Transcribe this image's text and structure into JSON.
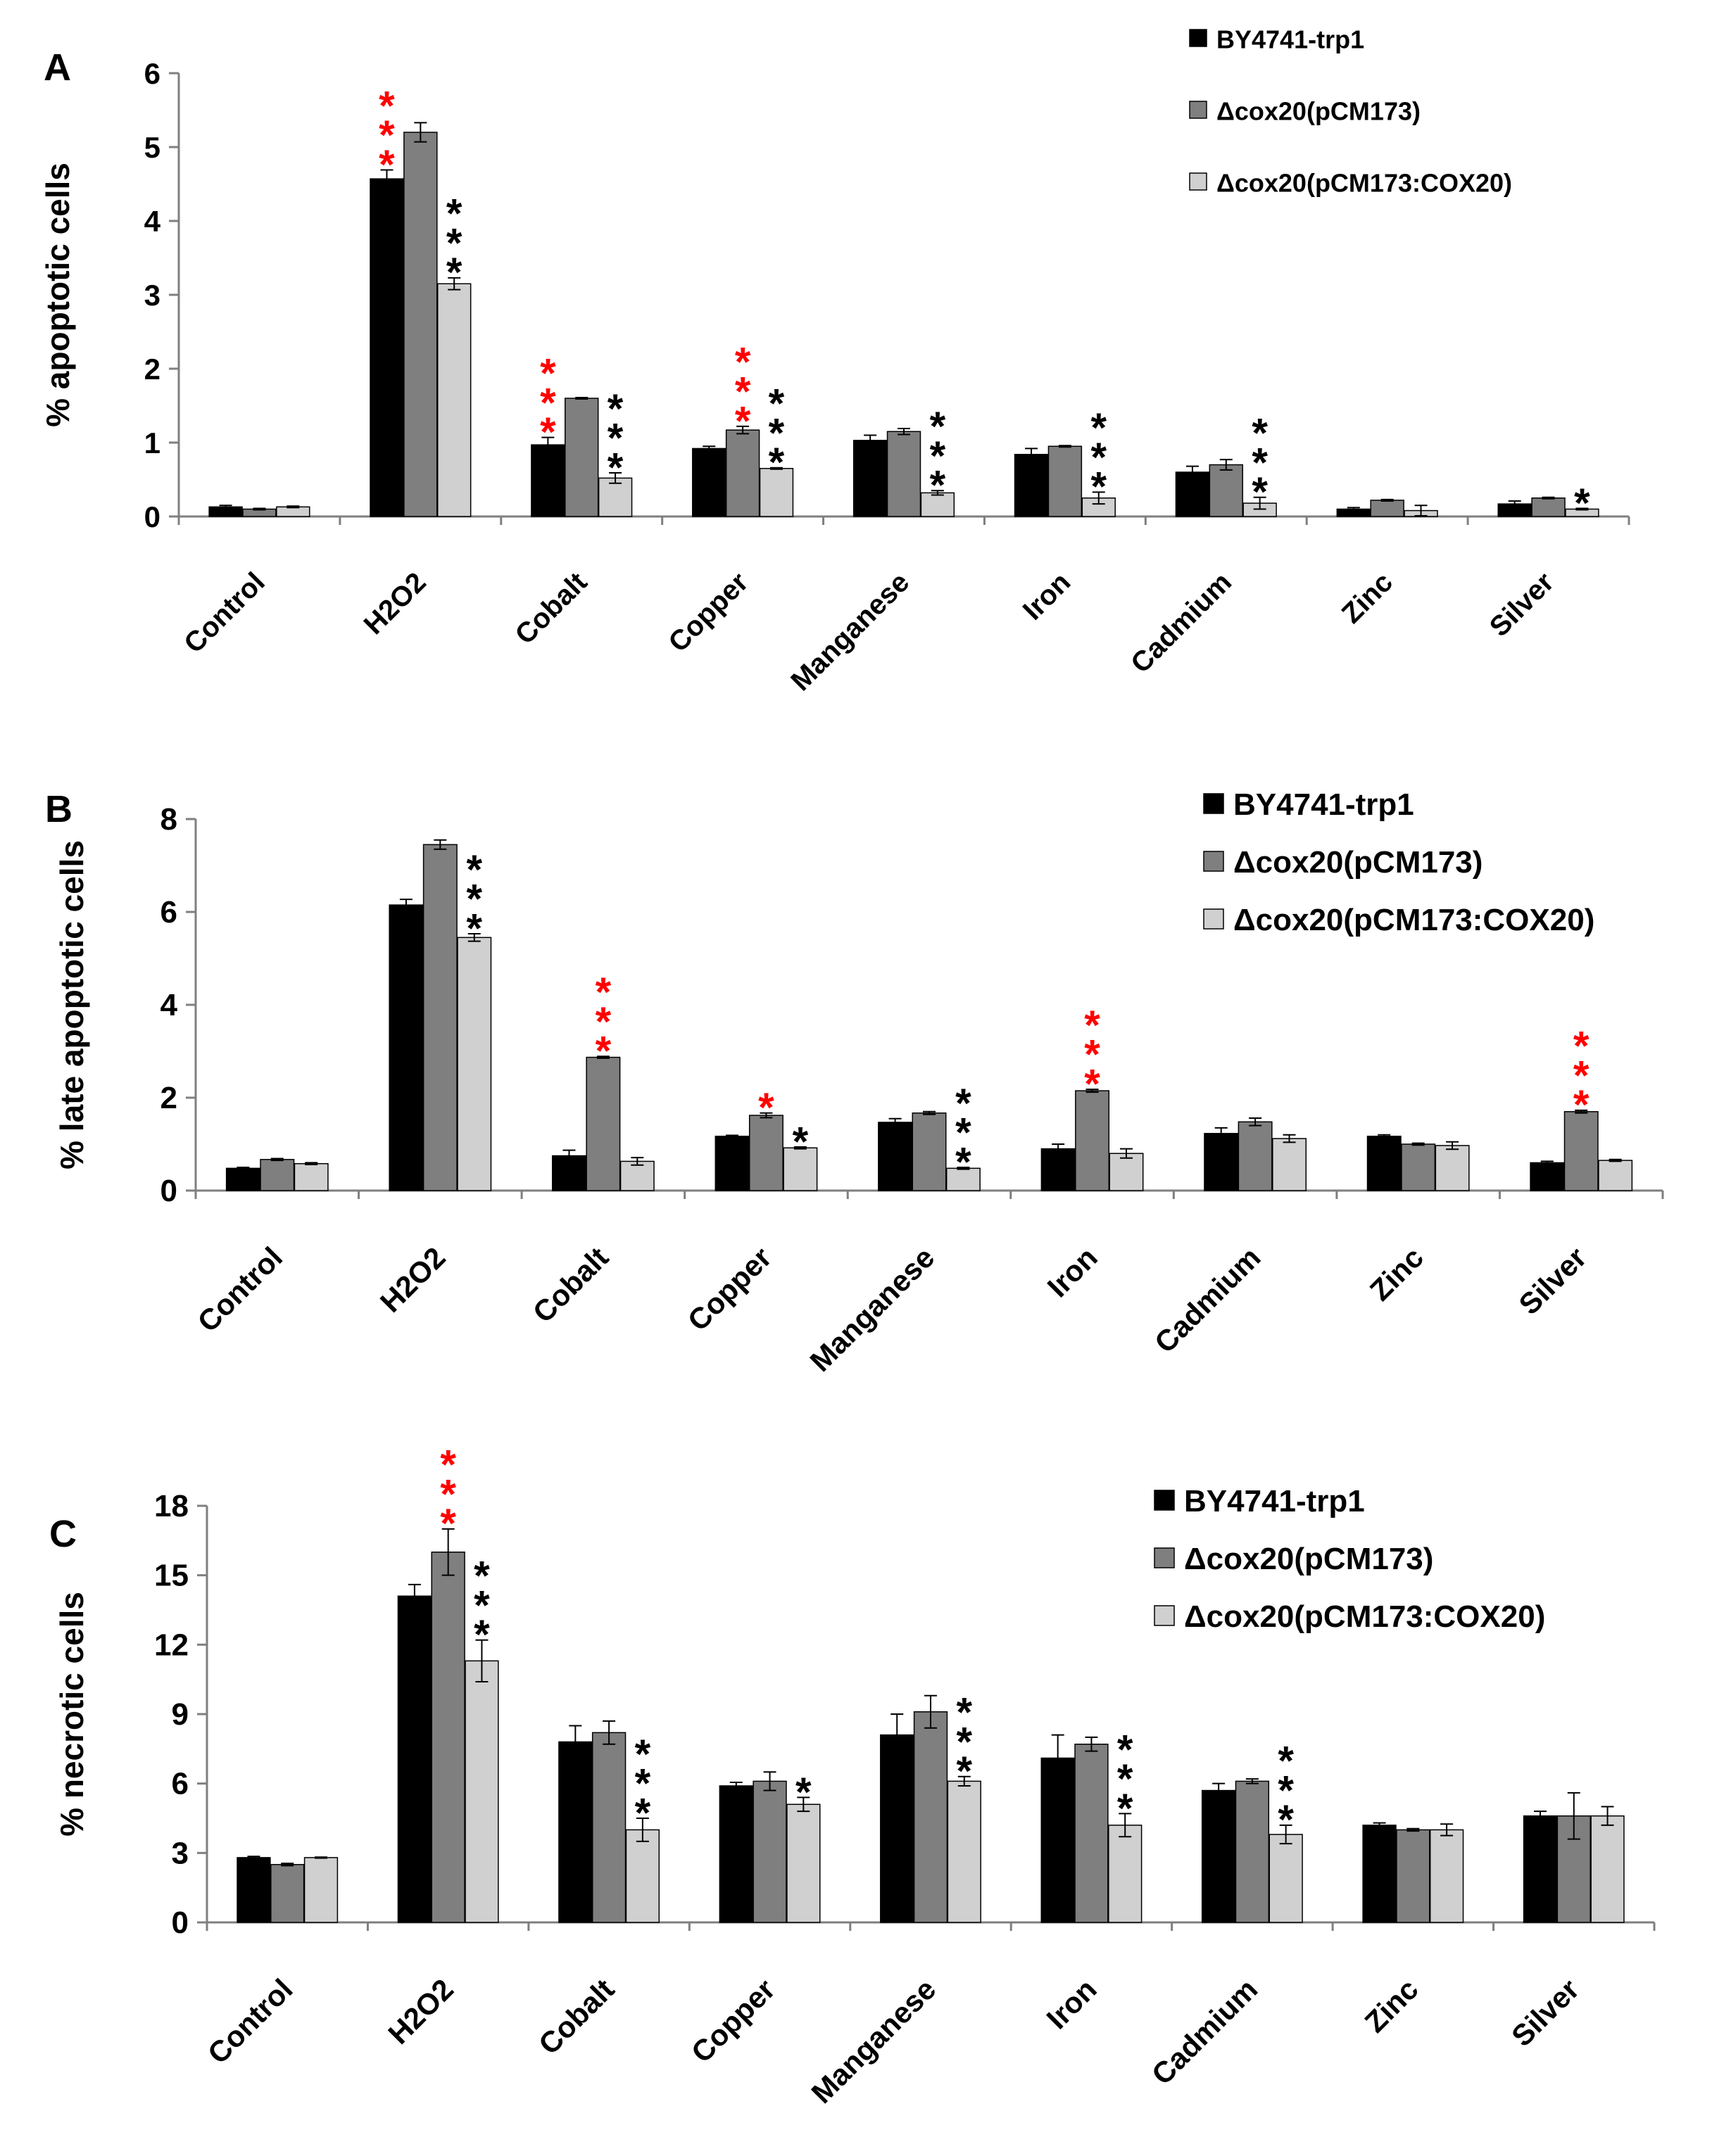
{
  "chart_data": [
    {
      "type": "bar",
      "panel_label": "A",
      "ylabel": "% apoptotic cells",
      "ylim": [
        0,
        6
      ],
      "yticks": [
        "0",
        "1",
        "2",
        "3",
        "4",
        "5",
        "6"
      ],
      "categories": [
        "Control",
        "H2O2",
        "Cobalt",
        "Copper",
        "Manganese",
        "Iron",
        "Cadmium",
        "Zinc",
        "Silver"
      ],
      "legend_position": "top-right",
      "series": [
        {
          "name": "BY4741-trp1",
          "values": [
            0.13,
            4.57,
            0.97,
            0.92,
            1.03,
            0.84,
            0.6,
            0.1,
            0.17
          ],
          "errors": [
            0.02,
            0.12,
            0.1,
            0.03,
            0.07,
            0.08,
            0.08,
            0.02,
            0.04
          ]
        },
        {
          "name": "Δcox20(pCM173)",
          "values": [
            0.1,
            5.2,
            1.6,
            1.17,
            1.15,
            0.95,
            0.7,
            0.22,
            0.25
          ],
          "errors": [
            0.01,
            0.13,
            0.01,
            0.05,
            0.04,
            0.01,
            0.07,
            0.01,
            0.01
          ]
        },
        {
          "name": "Δcox20(pCM173:COX20)",
          "values": [
            0.13,
            3.15,
            0.52,
            0.65,
            0.32,
            0.25,
            0.18,
            0.08,
            0.1
          ],
          "errors": [
            0.01,
            0.08,
            0.07,
            0.01,
            0.03,
            0.08,
            0.08,
            0.07,
            0.01
          ]
        }
      ],
      "significance": [
        {
          "category": "H2O2",
          "series": 0,
          "text": "***",
          "color": "#ff0000"
        },
        {
          "category": "H2O2",
          "series": 2,
          "text": "***",
          "color": "#000000"
        },
        {
          "category": "Cobalt",
          "series": 0,
          "text": "***",
          "color": "#ff0000"
        },
        {
          "category": "Cobalt",
          "series": 2,
          "text": "***",
          "color": "#000000"
        },
        {
          "category": "Copper",
          "series": 1,
          "text": "***",
          "color": "#ff0000"
        },
        {
          "category": "Copper",
          "series": 2,
          "text": "***",
          "color": "#000000"
        },
        {
          "category": "Manganese",
          "series": 2,
          "text": "***",
          "color": "#000000"
        },
        {
          "category": "Iron",
          "series": 2,
          "text": "***",
          "color": "#000000"
        },
        {
          "category": "Cadmium",
          "series": 2,
          "text": "***",
          "color": "#000000"
        },
        {
          "category": "Silver",
          "series": 2,
          "text": "*",
          "color": "#000000"
        }
      ]
    },
    {
      "type": "bar",
      "panel_label": "B",
      "ylabel": "% late apoptotic cells",
      "ylim": [
        0,
        8
      ],
      "yticks": [
        "0",
        "2",
        "4",
        "6",
        "8"
      ],
      "categories": [
        "Control",
        "H2O2",
        "Cobalt",
        "Copper",
        "Manganese",
        "Iron",
        "Cadmium",
        "Zinc",
        "Silver"
      ],
      "legend_position": "top-right",
      "series": [
        {
          "name": "BY4741-trp1",
          "values": [
            0.48,
            6.15,
            0.75,
            1.17,
            1.47,
            0.9,
            1.23,
            1.17,
            0.6
          ],
          "errors": [
            0.02,
            0.12,
            0.12,
            0.02,
            0.08,
            0.1,
            0.12,
            0.03,
            0.03
          ]
        },
        {
          "name": "Δcox20(pCM173)",
          "values": [
            0.67,
            7.45,
            2.87,
            1.62,
            1.67,
            2.15,
            1.48,
            1.0,
            1.7
          ],
          "errors": [
            0.02,
            0.1,
            0.02,
            0.05,
            0.03,
            0.03,
            0.08,
            0.02,
            0.03
          ]
        },
        {
          "name": "Δcox20(pCM173:COX20)",
          "values": [
            0.58,
            5.45,
            0.63,
            0.92,
            0.48,
            0.8,
            1.12,
            0.97,
            0.65
          ],
          "errors": [
            0.02,
            0.08,
            0.08,
            0.02,
            0.02,
            0.1,
            0.08,
            0.08,
            0.02
          ]
        }
      ],
      "significance": [
        {
          "category": "H2O2",
          "series": 2,
          "text": "***",
          "color": "#000000"
        },
        {
          "category": "Cobalt",
          "series": 1,
          "text": "***",
          "color": "#ff0000"
        },
        {
          "category": "Copper",
          "series": 1,
          "text": "*",
          "color": "#ff0000"
        },
        {
          "category": "Copper",
          "series": 2,
          "text": "*",
          "color": "#000000"
        },
        {
          "category": "Manganese",
          "series": 2,
          "text": "***",
          "color": "#000000"
        },
        {
          "category": "Iron",
          "series": 1,
          "text": "***",
          "color": "#ff0000"
        },
        {
          "category": "Silver",
          "series": 1,
          "text": "***",
          "color": "#ff0000"
        }
      ]
    },
    {
      "type": "bar",
      "panel_label": "C",
      "ylabel": "% necrotic cells",
      "ylim": [
        0,
        18
      ],
      "yticks": [
        "0",
        "3",
        "6",
        "9",
        "12",
        "15",
        "18"
      ],
      "categories": [
        "Control",
        "H2O2",
        "Cobalt",
        "Copper",
        "Manganese",
        "Iron",
        "Cadmium",
        "Zinc",
        "Silver"
      ],
      "legend_position": "top-right",
      "series": [
        {
          "name": "BY4741-trp1",
          "values": [
            2.8,
            14.1,
            7.8,
            5.9,
            8.1,
            7.1,
            5.7,
            4.2,
            4.6
          ],
          "errors": [
            0.05,
            0.5,
            0.7,
            0.15,
            0.9,
            1.0,
            0.3,
            0.1,
            0.2
          ]
        },
        {
          "name": "Δcox20(pCM173)",
          "values": [
            2.5,
            16.0,
            8.2,
            6.1,
            9.1,
            7.7,
            6.1,
            4.0,
            4.6
          ],
          "errors": [
            0.05,
            1.0,
            0.5,
            0.4,
            0.7,
            0.3,
            0.1,
            0.05,
            1.0
          ]
        },
        {
          "name": "Δcox20(pCM173:COX20)",
          "values": [
            2.8,
            11.3,
            4.0,
            5.1,
            6.1,
            4.2,
            3.8,
            4.0,
            4.6
          ],
          "errors": [
            0.02,
            0.9,
            0.5,
            0.3,
            0.2,
            0.5,
            0.4,
            0.25,
            0.4
          ]
        }
      ],
      "significance": [
        {
          "category": "H2O2",
          "series": 1,
          "text": "***",
          "color": "#ff0000"
        },
        {
          "category": "H2O2",
          "series": 2,
          "text": "***",
          "color": "#000000"
        },
        {
          "category": "Cobalt",
          "series": 2,
          "text": "***",
          "color": "#000000"
        },
        {
          "category": "Copper",
          "series": 2,
          "text": "*",
          "color": "#000000"
        },
        {
          "category": "Manganese",
          "series": 2,
          "text": "***",
          "color": "#000000"
        },
        {
          "category": "Iron",
          "series": 2,
          "text": "***",
          "color": "#000000"
        },
        {
          "category": "Cadmium",
          "series": 2,
          "text": "***",
          "color": "#000000"
        }
      ]
    }
  ],
  "colors": {
    "series": [
      "#000000",
      "#7f7f7f",
      "#d0d0d0"
    ],
    "significance_red": "#ff0000",
    "significance_black": "#000000",
    "axis": "#7f7f7f"
  }
}
